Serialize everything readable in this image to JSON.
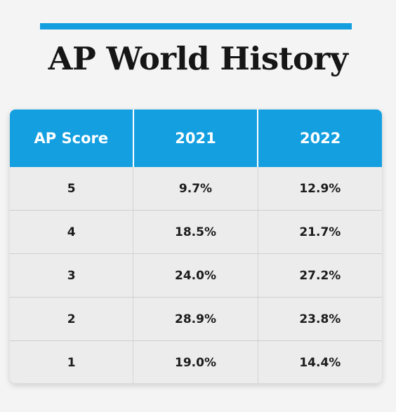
{
  "title": "AP World History",
  "accent_color": "#139ee0",
  "table": {
    "headers": [
      "AP Score",
      "2021",
      "2022"
    ],
    "rows": [
      [
        "5",
        "9.7%",
        "12.9%"
      ],
      [
        "4",
        "18.5%",
        "21.7%"
      ],
      [
        "3",
        "24.0%",
        "27.2%"
      ],
      [
        "2",
        "28.9%",
        "23.8%"
      ],
      [
        "1",
        "19.0%",
        "14.4%"
      ]
    ]
  }
}
